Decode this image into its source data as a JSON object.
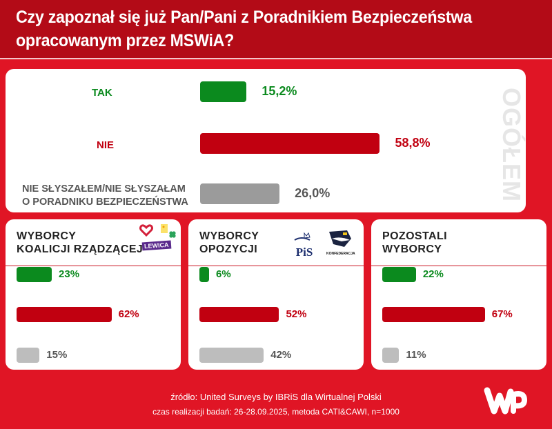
{
  "header": {
    "title_line1": "Czy zapoznał się już Pan/Pani z Poradnikiem Bezpieczeństwa",
    "title_line2": "opracowanym przez MSWiA?"
  },
  "colors": {
    "tak": "#0b8a1e",
    "nie": "#c10010",
    "unknown": "#9b9b9b",
    "unknown_light": "#bdbdbd",
    "brand_red": "#e01525",
    "header_red": "#b30b17"
  },
  "chart_data": [
    {
      "type": "bar",
      "title": "OGÓŁEM",
      "categories": [
        "TAK",
        "NIE",
        "NIE SŁYSZAŁEM/NIE SŁYSZAŁAM O PORADNIKU BEZPIECZEŃSTWA"
      ],
      "values": [
        15.2,
        58.8,
        26.0
      ],
      "value_labels": [
        "15,2%",
        "58,8%",
        "26,0%"
      ],
      "unit": "%",
      "orientation": "horizontal"
    },
    {
      "type": "bar",
      "title": "WYBORCY KOALICJI RZĄDZĄCEJ",
      "categories": [
        "TAK",
        "NIE",
        "NIE SŁYSZAŁEM/NIE SŁYSZAŁAM O PORADNIKU BEZPIECZEŃSTWA"
      ],
      "values": [
        23,
        62,
        15
      ],
      "value_labels": [
        "23%",
        "62%",
        "15%"
      ],
      "unit": "%",
      "orientation": "horizontal"
    },
    {
      "type": "bar",
      "title": "WYBORCY OPOZYCJI",
      "categories": [
        "TAK",
        "NIE",
        "NIE SŁYSZAŁEM/NIE SŁYSZAŁAM O PORADNIKU BEZPIECZEŃSTWA"
      ],
      "values": [
        6,
        52,
        42
      ],
      "value_labels": [
        "6%",
        "52%",
        "42%"
      ],
      "unit": "%",
      "orientation": "horizontal"
    },
    {
      "type": "bar",
      "title": "POZOSTALI WYBORCY",
      "categories": [
        "TAK",
        "NIE",
        "NIE SŁYSZAŁEM/NIE SŁYSZAŁAM O PORADNIKU BEZPIECZEŃSTWA"
      ],
      "values": [
        22,
        67,
        11
      ],
      "value_labels": [
        "22%",
        "67%",
        "11%"
      ],
      "unit": "%",
      "orientation": "horizontal"
    }
  ],
  "main": {
    "side_label": "OGÓŁEM",
    "labels": [
      "TAK",
      "NIE",
      "NIE SŁYSZAŁEM/NIE SŁYSZAŁAM",
      "O PORADNIKU BEZPIECZEŃSTWA"
    ]
  },
  "cards": [
    {
      "title_line1": "WYBORCY",
      "title_line2": "KOALICJI RZĄDZĄCEJ",
      "logos": [
        "ko-heart-logo",
        "polska-2050-logo",
        "psl-clover-logo",
        "lewica-logo"
      ],
      "lewica_text": "LEWICA"
    },
    {
      "title_line1": "WYBORCY",
      "title_line2": "OPOZYCJI",
      "logos": [
        "pis-logo",
        "konfederacja-logo"
      ],
      "pis_text": "PiS",
      "konf_text": "KONFEDERACJA"
    },
    {
      "title_line1": "POZOSTALI",
      "title_line2": "WYBORCY",
      "logos": []
    }
  ],
  "footer": {
    "source": "źródło: United Surveys by IBRiS dla Wirtualnej Polski",
    "details": "czas realizacji badań: 26-28.09.2025, metoda CATI&CAWI, n=1000",
    "logo_text": "WP"
  }
}
